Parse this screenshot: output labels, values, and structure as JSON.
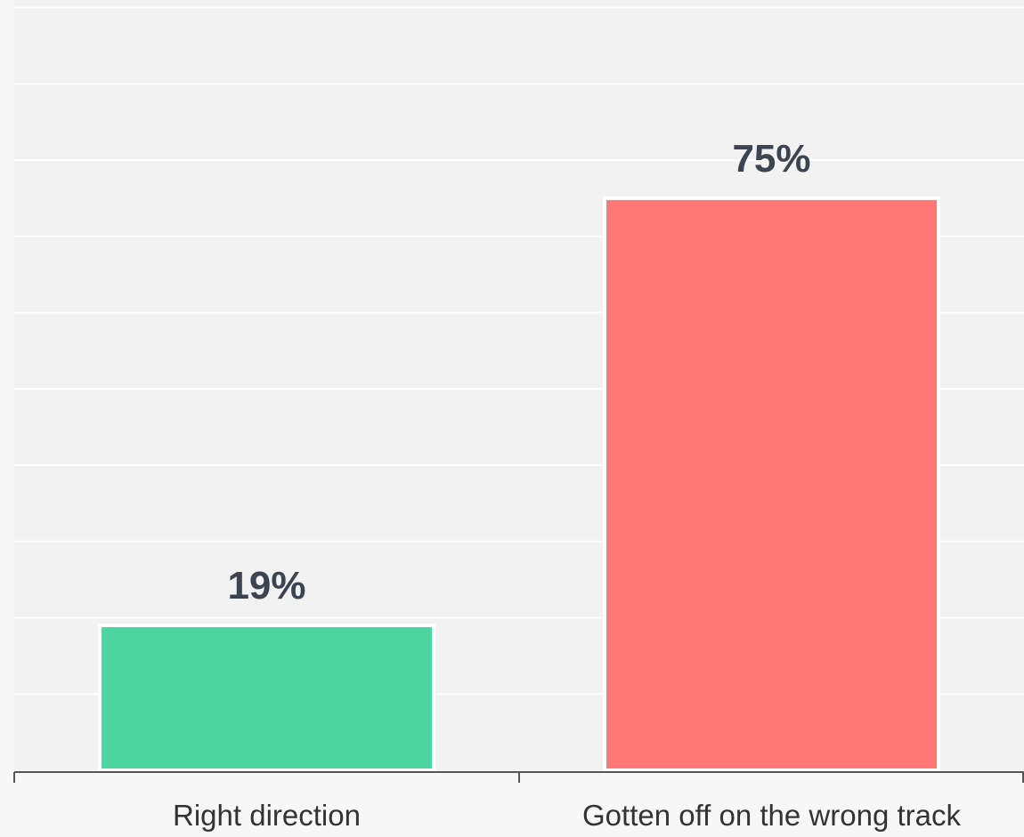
{
  "chart_data": {
    "type": "bar",
    "categories": [
      "Right direction",
      "Gotten off on the wrong track"
    ],
    "values": [
      19,
      75
    ],
    "data_labels": [
      "19%",
      "75%"
    ],
    "colors": [
      "#4dd4a1",
      "#ff7777"
    ],
    "title": "",
    "xlabel": "",
    "ylabel": "",
    "ylim": [
      0,
      100
    ],
    "grid": true,
    "legend": "none"
  },
  "colors": {
    "plot_background": "#f2f2f2",
    "page_background": "#f7f7f7",
    "gridline": "#ffffff",
    "axis": "#555555",
    "data_label": "#3b4450"
  }
}
